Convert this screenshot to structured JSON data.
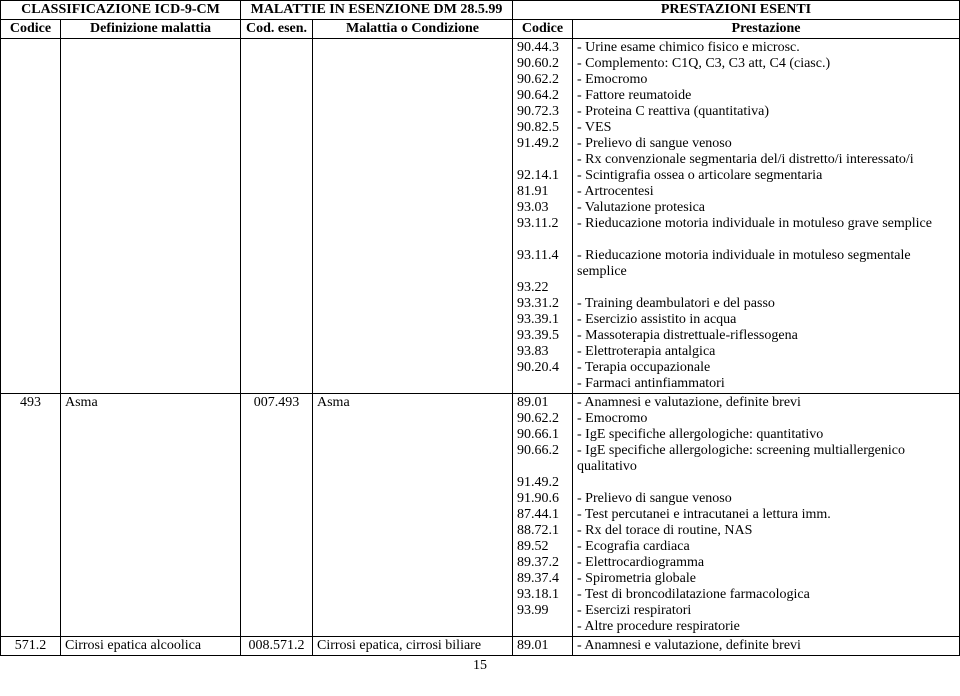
{
  "header1": {
    "c1": "CLASSIFICAZIONE ICD-9-CM",
    "c2": "MALATTIE IN ESENZIONE DM 28.5.99",
    "c3": "PRESTAZIONI ESENTI"
  },
  "header2": {
    "c1": "Codice",
    "c2": "Definizione malattia",
    "c3": "Cod. esen.",
    "c4": "Malattia o Condizione",
    "c5": "Codice",
    "c6": "Prestazione"
  },
  "rows": [
    {
      "codice1": "",
      "def": "",
      "codesen": "",
      "malattia": "",
      "codes": [
        "90.44.3",
        "90.60.2",
        "90.62.2",
        "90.64.2",
        "90.72.3",
        "90.82.5",
        "91.49.2",
        "",
        "92.14.1",
        "81.91",
        "93.03",
        "93.11.2",
        "",
        "93.11.4",
        "",
        "93.22",
        "93.31.2",
        "93.39.1",
        "93.39.5",
        "93.83",
        "90.20.4"
      ],
      "prest": [
        "- Urine esame chimico fisico e microsc.",
        "- Complemento: C1Q, C3, C3 att, C4 (ciasc.)",
        "- Emocromo",
        "- Fattore reumatoide",
        "- Proteina C reattiva (quantitativa)",
        "- VES",
        "- Prelievo di sangue venoso",
        "- Rx convenzionale segmentaria del/i distretto/i interessato/i",
        "- Scintigrafia ossea o articolare segmentaria",
        "- Artrocentesi",
        "- Valutazione protesica",
        "- Rieducazione motoria individuale in motuleso grave semplice",
        "",
        "- Rieducazione motoria individuale in motuleso segmentale semplice",
        "",
        "- Training deambulatori e del passo",
        "- Esercizio assistito in acqua",
        "- Massoterapia distrettuale-riflessogena",
        "- Elettroterapia antalgica",
        "- Terapia occupazionale",
        "- Farmaci antinfiammatori"
      ]
    },
    {
      "codice1": "493",
      "def": "Asma",
      "codesen": "007.493",
      "malattia": "Asma",
      "codes": [
        "89.01",
        "90.62.2",
        "90.66.1",
        "90.66.2",
        "",
        "91.49.2",
        "91.90.6",
        "87.44.1",
        "88.72.1",
        "89.52",
        "89.37.2",
        "89.37.4",
        "93.18.1",
        "93.99"
      ],
      "prest": [
        "- Anamnesi e valutazione, definite brevi",
        "- Emocromo",
        "- IgE specifiche allergologiche: quantitativo",
        "- IgE specifiche allergologiche: screening multiallergenico qualitativo",
        "",
        "- Prelievo di sangue venoso",
        "- Test percutanei e intracutanei a lettura imm.",
        "- Rx del torace di routine, NAS",
        "- Ecografia cardiaca",
        "- Elettrocardiogramma",
        "- Spirometria globale",
        "- Test di broncodilatazione farmacologica",
        "- Esercizi respiratori",
        "- Altre procedure respiratorie"
      ]
    },
    {
      "codice1": "571.2",
      "def": "Cirrosi epatica alcoolica",
      "codesen": "008.571.2",
      "malattia": "Cirrosi epatica, cirrosi biliare",
      "codes": [
        "89.01"
      ],
      "prest": [
        "- Anamnesi e valutazione, definite brevi"
      ]
    }
  ],
  "pageNum": "15"
}
